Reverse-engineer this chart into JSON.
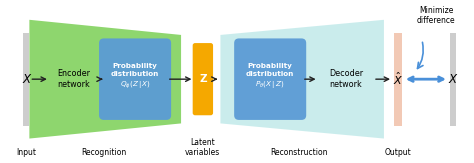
{
  "bg_color": "#ffffff",
  "input_bar_color": "#c8c8c8",
  "xhat_bar_color": "#f0c0a8",
  "green_bg_color": "#72cc4a",
  "cyan_bg_color": "#a0dede",
  "prob_dist_encoder_color": "#5b9bd5",
  "z_box_color": "#f5a800",
  "prob_dist_decoder_color": "#5b9bd5",
  "arrow_color": "#222222",
  "double_arrow_color": "#4a90d9",
  "curved_arrow_color": "#4a90d9",
  "title_top_right": "Minimize\ndifference",
  "label_input": "Input",
  "label_recognition": "Recognition",
  "label_latent": "Latent\nvariables",
  "label_reconstruction": "Reconstruction",
  "label_output": "Output",
  "label_x_left": "X",
  "label_x_right": "X",
  "label_xhat": "$\\hat{X}$",
  "label_z": "Z",
  "label_encoder": "Encoder\nnetwork",
  "label_decoder": "Decoder\nnetwork",
  "label_prob_encoder": "Probability\ndistribution\n$Q_\\phi(Z\\,|\\,X)$",
  "label_prob_decoder": "Probability\ndistribution\n$P_\\theta(X\\,|\\,Z)$"
}
